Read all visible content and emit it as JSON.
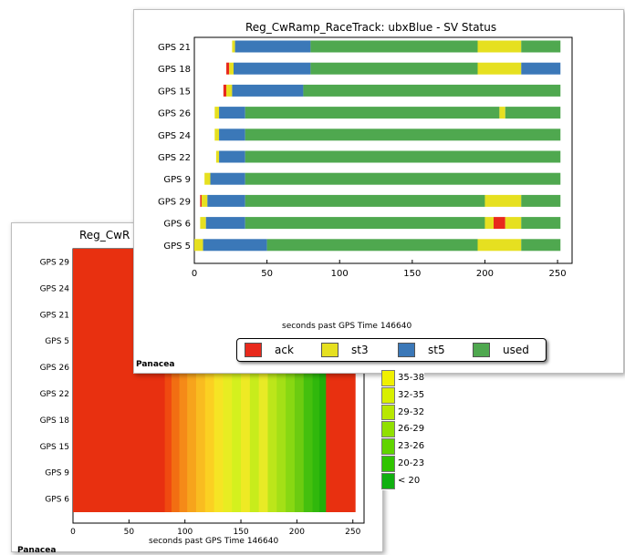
{
  "back_panel": {
    "title": "Reg_CwR",
    "xlabel": "seconds past GPS Time 146640",
    "brand": "Panacea"
  },
  "front_panel": {
    "title": "Reg_CwRamp_RaceTrack: ubxBlue - SV Status",
    "xlabel": "seconds past GPS Time 146640",
    "brand": "Panacea"
  },
  "colors": {
    "ack": "#e8291c",
    "st3": "#e6e020",
    "st5": "#3b78b8",
    "used": "#4fa84f",
    "heat_red": "#e83010"
  },
  "legend": [
    {
      "label": "ack",
      "color": "#e8291c"
    },
    {
      "label": "st3",
      "color": "#e6e020"
    },
    {
      "label": "st5",
      "color": "#3b78b8"
    },
    {
      "label": "used",
      "color": "#4fa84f"
    }
  ],
  "color_key": [
    {
      "label": "35-38",
      "color": "#f0f000"
    },
    {
      "label": "32-35",
      "color": "#d8f000"
    },
    {
      "label": "29-32",
      "color": "#b8e800"
    },
    {
      "label": "26-29",
      "color": "#90e000"
    },
    {
      "label": "23-26",
      "color": "#60d400"
    },
    {
      "label": "20-23",
      "color": "#30c400"
    },
    {
      "label": "< 20",
      "color": "#10b010"
    }
  ],
  "chart_data": [
    {
      "type": "bar",
      "orientation": "horizontal-timeline",
      "title": "Reg_CwRamp_RaceTrack: ubxBlue - SV Status",
      "xlabel": "seconds past GPS Time 146640",
      "xlim": [
        0,
        260
      ],
      "xticks": [
        0,
        50,
        100,
        150,
        200,
        250
      ],
      "categories": [
        "GPS 21",
        "GPS 18",
        "GPS 15",
        "GPS 26",
        "GPS 24",
        "GPS 22",
        "GPS 9",
        "GPS 29",
        "GPS 6",
        "GPS 5"
      ],
      "legend_position": "bottom",
      "rows": [
        {
          "sv": "GPS 21",
          "segments": [
            {
              "status": "st3",
              "start": 26,
              "end": 28
            },
            {
              "status": "st5",
              "start": 28,
              "end": 80
            },
            {
              "status": "used",
              "start": 80,
              "end": 195
            },
            {
              "status": "st3",
              "start": 195,
              "end": 225
            },
            {
              "status": "used",
              "start": 225,
              "end": 252
            }
          ]
        },
        {
          "sv": "GPS 18",
          "segments": [
            {
              "status": "ack",
              "start": 22,
              "end": 24
            },
            {
              "status": "st3",
              "start": 24,
              "end": 27
            },
            {
              "status": "st5",
              "start": 27,
              "end": 80
            },
            {
              "status": "used",
              "start": 80,
              "end": 195
            },
            {
              "status": "st3",
              "start": 195,
              "end": 225
            },
            {
              "status": "st5",
              "start": 225,
              "end": 252
            }
          ]
        },
        {
          "sv": "GPS 15",
          "segments": [
            {
              "status": "ack",
              "start": 20,
              "end": 22
            },
            {
              "status": "st3",
              "start": 22,
              "end": 26
            },
            {
              "status": "st5",
              "start": 26,
              "end": 75
            },
            {
              "status": "used",
              "start": 75,
              "end": 252
            }
          ]
        },
        {
          "sv": "GPS 26",
          "segments": [
            {
              "status": "st3",
              "start": 14,
              "end": 17
            },
            {
              "status": "st5",
              "start": 17,
              "end": 35
            },
            {
              "status": "used",
              "start": 35,
              "end": 210
            },
            {
              "status": "st3",
              "start": 210,
              "end": 214
            },
            {
              "status": "used",
              "start": 214,
              "end": 252
            }
          ]
        },
        {
          "sv": "GPS 24",
          "segments": [
            {
              "status": "st3",
              "start": 14,
              "end": 17
            },
            {
              "status": "st5",
              "start": 17,
              "end": 35
            },
            {
              "status": "used",
              "start": 35,
              "end": 252
            }
          ]
        },
        {
          "sv": "GPS 22",
          "segments": [
            {
              "status": "st3",
              "start": 15,
              "end": 17
            },
            {
              "status": "st5",
              "start": 17,
              "end": 35
            },
            {
              "status": "used",
              "start": 35,
              "end": 252
            }
          ]
        },
        {
          "sv": "GPS 9",
          "segments": [
            {
              "status": "st3",
              "start": 7,
              "end": 11
            },
            {
              "status": "st5",
              "start": 11,
              "end": 35
            },
            {
              "status": "used",
              "start": 35,
              "end": 252
            }
          ]
        },
        {
          "sv": "GPS 29",
          "segments": [
            {
              "status": "ack",
              "start": 4,
              "end": 5
            },
            {
              "status": "st3",
              "start": 5,
              "end": 9
            },
            {
              "status": "st5",
              "start": 9,
              "end": 35
            },
            {
              "status": "used",
              "start": 35,
              "end": 200
            },
            {
              "status": "st3",
              "start": 200,
              "end": 225
            },
            {
              "status": "used",
              "start": 225,
              "end": 252
            }
          ]
        },
        {
          "sv": "GPS 6",
          "segments": [
            {
              "status": "st3",
              "start": 4,
              "end": 8
            },
            {
              "status": "st5",
              "start": 8,
              "end": 35
            },
            {
              "status": "used",
              "start": 35,
              "end": 200
            },
            {
              "status": "st3",
              "start": 200,
              "end": 206
            },
            {
              "status": "ack",
              "start": 206,
              "end": 214
            },
            {
              "status": "st3",
              "start": 214,
              "end": 225
            },
            {
              "status": "used",
              "start": 225,
              "end": 252
            }
          ]
        },
        {
          "sv": "GPS 5",
          "segments": [
            {
              "status": "st3",
              "start": 0,
              "end": 6
            },
            {
              "status": "st5",
              "start": 6,
              "end": 50
            },
            {
              "status": "used",
              "start": 50,
              "end": 195
            },
            {
              "status": "st3",
              "start": 195,
              "end": 225
            },
            {
              "status": "used",
              "start": 225,
              "end": 252
            }
          ]
        }
      ]
    },
    {
      "type": "heatmap",
      "title": "Reg_CwR",
      "xlabel": "seconds past GPS Time 146640",
      "xlim": [
        0,
        260
      ],
      "xticks": [
        0,
        50,
        100,
        150,
        200,
        250
      ],
      "categories": [
        "GPS 29",
        "GPS 24",
        "GPS 21",
        "GPS 5",
        "GPS 26",
        "GPS 22",
        "GPS 18",
        "GPS 15",
        "GPS 9",
        "GPS 6"
      ],
      "legend": [
        "35-38",
        "32-35",
        "29-32",
        "26-29",
        "23-26",
        "20-23",
        "< 20"
      ],
      "columns": [
        {
          "start": 0,
          "end": 82,
          "color": "#e83010"
        },
        {
          "start": 82,
          "end": 88,
          "color": "#f04a10"
        },
        {
          "start": 88,
          "end": 95,
          "color": "#f26e12"
        },
        {
          "start": 95,
          "end": 102,
          "color": "#f58a18"
        },
        {
          "start": 102,
          "end": 110,
          "color": "#f7a41c"
        },
        {
          "start": 110,
          "end": 118,
          "color": "#f9bc20"
        },
        {
          "start": 118,
          "end": 126,
          "color": "#fbd022"
        },
        {
          "start": 126,
          "end": 134,
          "color": "#f6e424"
        },
        {
          "start": 134,
          "end": 142,
          "color": "#e8ec22"
        },
        {
          "start": 142,
          "end": 150,
          "color": "#d4f01e"
        },
        {
          "start": 150,
          "end": 158,
          "color": "#eeea24"
        },
        {
          "start": 158,
          "end": 166,
          "color": "#c8ec1c"
        },
        {
          "start": 166,
          "end": 174,
          "color": "#e8ea26"
        },
        {
          "start": 174,
          "end": 182,
          "color": "#bce61a"
        },
        {
          "start": 182,
          "end": 190,
          "color": "#a4e016"
        },
        {
          "start": 190,
          "end": 198,
          "color": "#88d812"
        },
        {
          "start": 198,
          "end": 206,
          "color": "#6ccc10"
        },
        {
          "start": 206,
          "end": 214,
          "color": "#44c00e"
        },
        {
          "start": 214,
          "end": 220,
          "color": "#30b80c"
        },
        {
          "start": 220,
          "end": 226,
          "color": "#22ae0a"
        },
        {
          "start": 226,
          "end": 252,
          "color": "#e83010"
        }
      ]
    }
  ]
}
